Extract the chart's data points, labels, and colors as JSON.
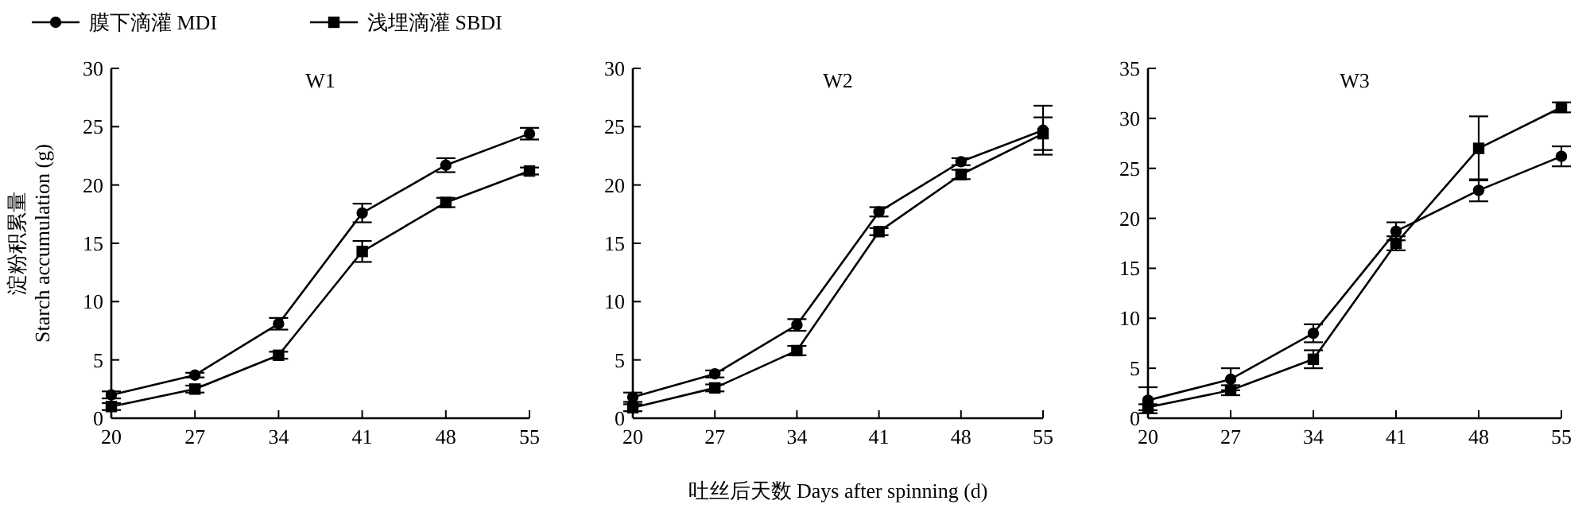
{
  "chart_data": [
    {
      "type": "line",
      "title": "W1",
      "ylabel": "淀粉积累量\nStarch accumulation (g)",
      "x": [
        20,
        27,
        34,
        41,
        48,
        55
      ],
      "xlim": [
        20,
        55
      ],
      "xticks": [
        20,
        27,
        34,
        41,
        48,
        55
      ],
      "ylim": [
        0,
        30
      ],
      "yticks": [
        0,
        5,
        10,
        15,
        20,
        25,
        30
      ],
      "legend": "top left",
      "grid": false,
      "series": [
        {
          "name": "膜下滴灌 MDI",
          "color": "#000000",
          "marker": "circle",
          "values": [
            2.0,
            3.7,
            8.1,
            17.6,
            21.7,
            24.4
          ],
          "errors": [
            0.3,
            0.2,
            0.5,
            0.8,
            0.6,
            0.5
          ]
        },
        {
          "name": "浅埋滴灌 SBDI",
          "color": "#000000",
          "marker": "square",
          "values": [
            1.0,
            2.5,
            5.4,
            14.3,
            18.5,
            21.2
          ],
          "errors": [
            0.3,
            0.3,
            0.3,
            0.9,
            0.4,
            0.3
          ]
        }
      ]
    },
    {
      "type": "line",
      "title": "W2",
      "xlabel": "吐丝后天数 Days after spinning (d)",
      "x": [
        20,
        27,
        34,
        41,
        48,
        55
      ],
      "xlim": [
        20,
        55
      ],
      "xticks": [
        20,
        27,
        34,
        41,
        48,
        55
      ],
      "ylim": [
        0,
        30
      ],
      "yticks": [
        0,
        5,
        10,
        15,
        20,
        25,
        30
      ],
      "grid": false,
      "series": [
        {
          "color": "#000000",
          "marker": "circle",
          "values": [
            1.8,
            3.8,
            8.0,
            17.7,
            22.0,
            24.7
          ],
          "errors": [
            0.4,
            0.3,
            0.5,
            0.4,
            0.3,
            2.1
          ]
        },
        {
          "color": "#000000",
          "marker": "square",
          "values": [
            0.9,
            2.6,
            5.8,
            16.0,
            20.9,
            24.4
          ],
          "errors": [
            0.3,
            0.3,
            0.4,
            0.3,
            0.4,
            1.4
          ]
        }
      ]
    },
    {
      "type": "line",
      "title": "W3",
      "x": [
        20,
        27,
        34,
        41,
        48,
        55
      ],
      "xlim": [
        20,
        55
      ],
      "xticks": [
        20,
        27,
        34,
        41,
        48,
        55
      ],
      "ylim": [
        0,
        35
      ],
      "yticks": [
        0,
        5,
        10,
        15,
        20,
        25,
        30,
        35
      ],
      "grid": false,
      "series": [
        {
          "color": "#000000",
          "marker": "circle",
          "values": [
            1.8,
            3.9,
            8.5,
            18.7,
            22.8,
            26.2
          ],
          "errors": [
            1.3,
            1.1,
            0.9,
            0.9,
            1.1,
            1.0
          ]
        },
        {
          "color": "#000000",
          "marker": "square",
          "values": [
            1.1,
            2.8,
            5.9,
            17.5,
            27.0,
            31.1
          ],
          "errors": [
            0.3,
            0.5,
            0.9,
            0.7,
            3.2,
            0.5
          ]
        }
      ]
    }
  ]
}
